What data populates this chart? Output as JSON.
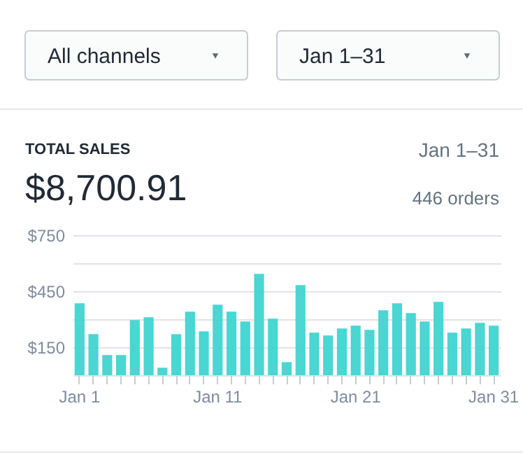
{
  "chart_data": {
    "type": "bar",
    "title": "TOTAL SALES",
    "subtitle": "$8,700.91",
    "annotations": [
      "All channels",
      "Jan 1–31",
      "Jan 1–31",
      "446 orders"
    ],
    "categories": [
      "Jan 1",
      null,
      null,
      null,
      null,
      null,
      null,
      null,
      null,
      null,
      "Jan 11",
      null,
      null,
      null,
      null,
      null,
      null,
      null,
      null,
      null,
      "Jan 21",
      null,
      null,
      null,
      null,
      null,
      null,
      null,
      null,
      null,
      "Jan 31"
    ],
    "values": [
      385,
      220,
      108,
      108,
      295,
      310,
      40,
      220,
      340,
      235,
      378,
      340,
      288,
      543,
      303,
      70,
      483,
      228,
      213,
      250,
      265,
      243,
      348,
      385,
      333,
      288,
      393,
      228,
      250,
      280,
      265
    ],
    "color": "#40d4d0",
    "ylim": [
      0,
      750
    ],
    "yticks": [
      {
        "value": 0,
        "label": null
      },
      {
        "value": 150,
        "label": "$150"
      },
      {
        "value": 300,
        "label": null
      },
      {
        "value": 450,
        "label": "$450"
      },
      {
        "value": 600,
        "label": null
      },
      {
        "value": 750,
        "label": "$750"
      }
    ],
    "grid": "y"
  }
}
